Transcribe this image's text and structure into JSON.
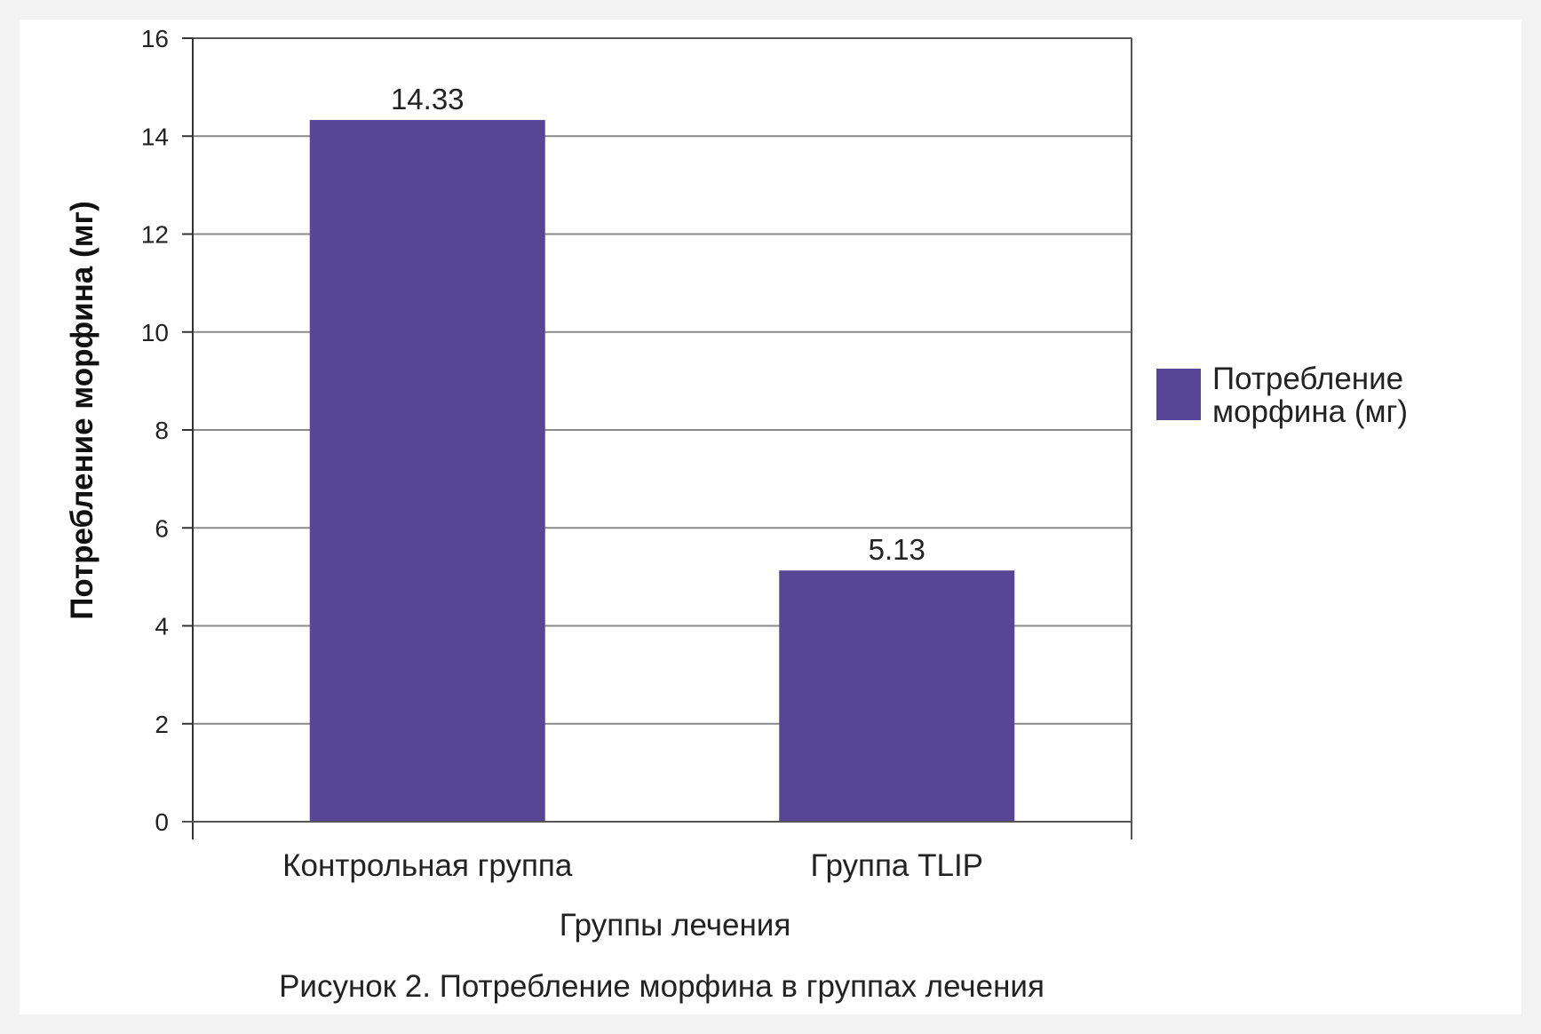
{
  "chart_data": {
    "type": "bar",
    "categories": [
      "Контрольная группа",
      "Группа TLIP"
    ],
    "series": [
      {
        "name": "Потребление морфина (мг)",
        "values": [
          14.33,
          5.13
        ],
        "data_labels": [
          "14.33",
          "5.13"
        ],
        "color": "#574696"
      }
    ],
    "xlabel": "Группы лечения",
    "ylabel": "Потребление морфина (мг)",
    "ylim": [
      0,
      16
    ],
    "yticks": [
      0,
      2,
      4,
      6,
      8,
      10,
      12,
      14,
      16
    ],
    "grid": true,
    "legend": {
      "placement": "right",
      "lines": [
        "Потребление",
        "морфина (мг)"
      ]
    }
  },
  "caption": "Рисунок 2. Потребление морфина в группах лечения"
}
